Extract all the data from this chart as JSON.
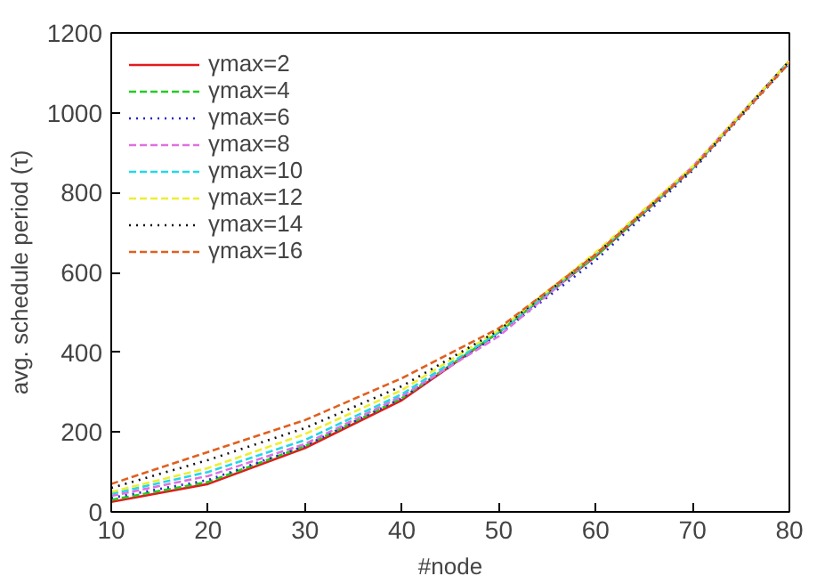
{
  "chart_data": {
    "type": "line",
    "xlabel": "#node",
    "ylabel": "avg. schedule period (τ)",
    "x": [
      10,
      20,
      30,
      40,
      50,
      60,
      70,
      80
    ],
    "xlim": [
      10,
      80
    ],
    "xticks": [
      10,
      20,
      30,
      40,
      50,
      60,
      70,
      80
    ],
    "ylim": [
      0,
      1200
    ],
    "yticks": [
      0,
      200,
      400,
      600,
      800,
      1000,
      1200
    ],
    "grid": false,
    "legend": "top left",
    "marker": "none",
    "series": [
      {
        "name": "γmax=2",
        "color": "#e41a1c",
        "line_style": "solid",
        "values": [
          25,
          70,
          160,
          280,
          450,
          640,
          860,
          1130
        ]
      },
      {
        "name": "γmax=4",
        "color": "#22cc22",
        "line_style": "dashed",
        "values": [
          30,
          75,
          165,
          285,
          450,
          640,
          860,
          1130
        ]
      },
      {
        "name": "γmax=6",
        "color": "#2222cc",
        "line_style": "dotted",
        "values": [
          35,
          80,
          165,
          285,
          445,
          630,
          855,
          1125
        ]
      },
      {
        "name": "γmax=8",
        "color": "#e070e0",
        "line_style": "dashed",
        "values": [
          40,
          90,
          170,
          290,
          440,
          645,
          865,
          1130
        ]
      },
      {
        "name": "γmax=10",
        "color": "#22d8e8",
        "line_style": "dashed",
        "values": [
          45,
          100,
          180,
          295,
          450,
          645,
          860,
          1130
        ]
      },
      {
        "name": "γmax=12",
        "color": "#eeee30",
        "line_style": "dashed",
        "values": [
          50,
          110,
          195,
          305,
          455,
          650,
          865,
          1130
        ]
      },
      {
        "name": "γmax=14",
        "color": "#111111",
        "line_style": "dotted",
        "values": [
          60,
          130,
          210,
          315,
          455,
          645,
          860,
          1130
        ]
      },
      {
        "name": "γmax=16",
        "color": "#e06020",
        "line_style": "dashed",
        "values": [
          70,
          150,
          230,
          335,
          460,
          645,
          860,
          1125
        ]
      }
    ]
  }
}
